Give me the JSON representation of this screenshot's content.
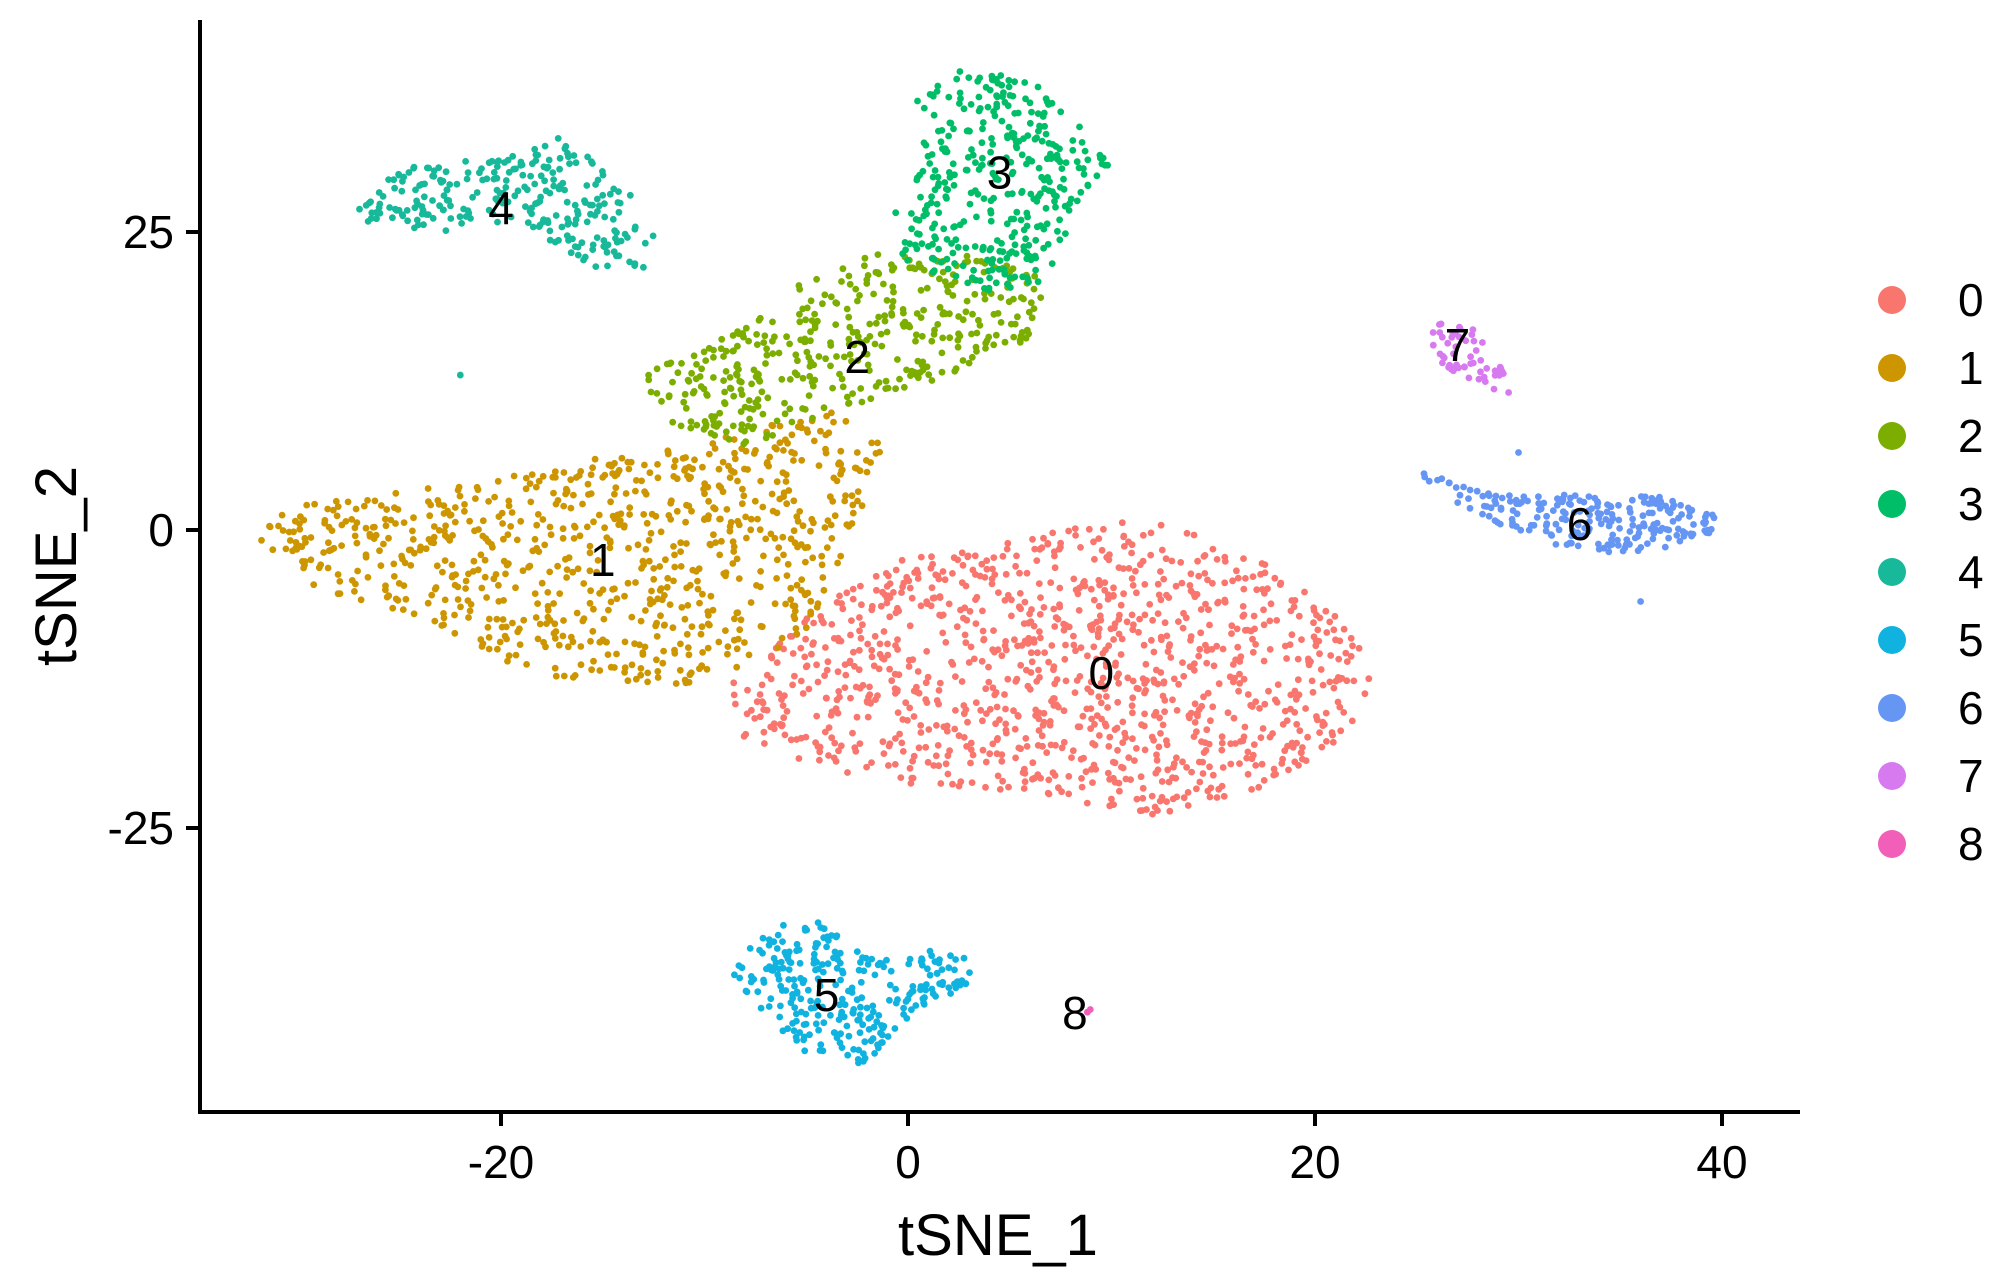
{
  "chart_data": {
    "type": "scatter",
    "xlabel": "tSNE_1",
    "ylabel": "tSNE_2",
    "xlim": [
      -35,
      44
    ],
    "ylim": [
      -49,
      43
    ],
    "x_ticks": [
      -20,
      0,
      20,
      40
    ],
    "x_tick_labels": [
      "-20",
      "0",
      "20",
      "40"
    ],
    "y_ticks": [
      25,
      0,
      -25
    ],
    "y_tick_labels": [
      "25",
      "0",
      "-25"
    ],
    "grid": false,
    "legend_position": "right",
    "legend": [
      "0",
      "1",
      "2",
      "3",
      "4",
      "5",
      "6",
      "7",
      "8"
    ],
    "series": [
      {
        "name": "0",
        "color": "#F8766D",
        "label_pos": [
          9.5,
          -12
        ],
        "n_points": 1100,
        "polygon": [
          [
            -3,
            -3
          ],
          [
            2,
            -2
          ],
          [
            7,
            0
          ],
          [
            12,
            1
          ],
          [
            17,
            -2
          ],
          [
            21,
            -7
          ],
          [
            23,
            -11
          ],
          [
            22,
            -17
          ],
          [
            17,
            -22
          ],
          [
            12,
            -24
          ],
          [
            6,
            -22
          ],
          [
            -2,
            -21
          ],
          [
            -8,
            -18
          ],
          [
            -10,
            -14
          ],
          [
            -7,
            -10
          ],
          [
            -4,
            -6
          ]
        ]
      },
      {
        "name": "1",
        "color": "#CD9600",
        "label_pos": [
          -15,
          -2.5
        ],
        "n_points": 800,
        "polygon": [
          [
            -31,
            2
          ],
          [
            -27,
            3
          ],
          [
            -21,
            4
          ],
          [
            -16,
            6
          ],
          [
            -11,
            7
          ],
          [
            -7,
            9
          ],
          [
            -4,
            11
          ],
          [
            -1,
            7
          ],
          [
            -3,
            -1
          ],
          [
            -5,
            -9
          ],
          [
            -9,
            -13
          ],
          [
            -13,
            -13
          ],
          [
            -19,
            -12
          ],
          [
            -23,
            -8
          ],
          [
            -29,
            -5
          ],
          [
            -32,
            -1
          ]
        ]
      },
      {
        "name": "2",
        "color": "#7CAE00",
        "label_pos": [
          -2.5,
          14.5
        ],
        "n_points": 420,
        "polygon": [
          [
            -13,
            13
          ],
          [
            -8,
            17
          ],
          [
            -5,
            21
          ],
          [
            -1,
            24
          ],
          [
            4,
            23
          ],
          [
            7,
            21
          ],
          [
            6,
            16
          ],
          [
            2,
            13
          ],
          [
            -3,
            10
          ],
          [
            -8,
            7
          ],
          [
            -12,
            9
          ]
        ]
      },
      {
        "name": "3",
        "color": "#00BE67",
        "label_pos": [
          4.5,
          30
        ],
        "n_points": 360,
        "polygon": [
          [
            0,
            37
          ],
          [
            3,
            39
          ],
          [
            7,
            37
          ],
          [
            10,
            31
          ],
          [
            8,
            26
          ],
          [
            7,
            21
          ],
          [
            4,
            20
          ],
          [
            0,
            22
          ],
          [
            -1,
            26
          ],
          [
            1,
            31
          ]
        ]
      },
      {
        "name": "4",
        "color": "#00BFC4",
        "color_override": "#17B99A",
        "label_pos": [
          -20,
          27
        ],
        "n_points": 260,
        "polygon": [
          [
            -27,
            28
          ],
          [
            -24,
            31
          ],
          [
            -20,
            31
          ],
          [
            -17,
            33
          ],
          [
            -14,
            29
          ],
          [
            -12,
            24
          ],
          [
            -13,
            22
          ],
          [
            -16,
            22
          ],
          [
            -19,
            26
          ],
          [
            -23,
            25
          ],
          [
            -27,
            26
          ]
        ]
      },
      {
        "name": "5",
        "color": "#00A9FF",
        "color_override": "#10B3E0",
        "label_pos": [
          -4,
          -39
        ],
        "n_points": 280,
        "polygon": [
          [
            -9,
            -36
          ],
          [
            -5,
            -32
          ],
          [
            -2,
            -36
          ],
          [
            2,
            -35
          ],
          [
            4,
            -37
          ],
          [
            0,
            -41
          ],
          [
            -2,
            -45
          ],
          [
            -5,
            -44
          ],
          [
            -8,
            -39
          ]
        ]
      },
      {
        "name": "6",
        "color": "#619CFF",
        "color_override": "#6696F4",
        "label_pos": [
          33,
          0.5
        ],
        "n_points": 220,
        "polygon": [
          [
            25,
            5
          ],
          [
            29,
            3
          ],
          [
            33,
            3
          ],
          [
            37,
            3
          ],
          [
            40,
            1
          ],
          [
            39,
            -1
          ],
          [
            35,
            -2
          ],
          [
            31,
            -1
          ],
          [
            27,
            2
          ]
        ]
      },
      {
        "name": "7",
        "color": "#C77CFF",
        "color_override": "#D77AF0",
        "label_pos": [
          27,
          15.5
        ],
        "n_points": 55,
        "polygon": [
          [
            25.5,
            17.5
          ],
          [
            28,
            17
          ],
          [
            29,
            14
          ],
          [
            30,
            11
          ],
          [
            28.5,
            12
          ],
          [
            26,
            14
          ]
        ]
      },
      {
        "name": "8",
        "color": "#FF61C3",
        "color_override": "#F25FB8",
        "label_pos": [
          8.2,
          -40.5
        ],
        "n_points": 2,
        "polygon": [
          [
            8.6,
            -40
          ],
          [
            9,
            -40.2
          ],
          [
            8.8,
            -40.5
          ]
        ]
      }
    ],
    "outliers": [
      {
        "cluster": "4",
        "x": -22,
        "y": 13
      },
      {
        "cluster": "6",
        "x": 36,
        "y": -6
      },
      {
        "cluster": "6",
        "x": 30,
        "y": 6.5
      }
    ]
  }
}
